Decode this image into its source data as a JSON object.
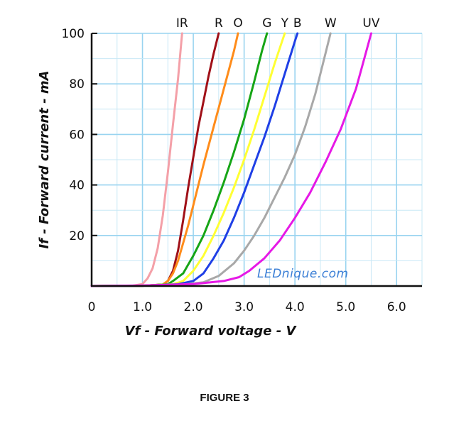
{
  "caption": "FIGURE 3",
  "chart_data": {
    "type": "line",
    "title": "",
    "xlabel": "Vf - Forward voltage - V",
    "ylabel": "If - Forward current - mA",
    "xlim": [
      0,
      6.5
    ],
    "ylim": [
      0,
      100
    ],
    "x_ticks": [
      "0",
      "1.0",
      "2.0",
      "3.0",
      "4.0",
      "5.0",
      "6.0"
    ],
    "y_ticks": [
      "20",
      "40",
      "60",
      "80",
      "100"
    ],
    "grid": true,
    "legend": "series names printed above top edge",
    "watermark": "LEDnique.com",
    "series": [
      {
        "name": "IR",
        "color": "#f4a0a8",
        "points": [
          [
            0,
            0
          ],
          [
            0.8,
            0.1
          ],
          [
            1.0,
            0.8
          ],
          [
            1.1,
            3
          ],
          [
            1.2,
            7
          ],
          [
            1.3,
            15
          ],
          [
            1.4,
            28
          ],
          [
            1.5,
            45
          ],
          [
            1.6,
            64
          ],
          [
            1.7,
            82
          ],
          [
            1.78,
            100
          ]
        ]
      },
      {
        "name": "R",
        "color": "#a01018",
        "points": [
          [
            0,
            0
          ],
          [
            1.0,
            0.1
          ],
          [
            1.4,
            0.6
          ],
          [
            1.5,
            2
          ],
          [
            1.6,
            6
          ],
          [
            1.7,
            14
          ],
          [
            1.8,
            26
          ],
          [
            1.9,
            39
          ],
          [
            2.0,
            51
          ],
          [
            2.1,
            63
          ],
          [
            2.2,
            73
          ],
          [
            2.3,
            83
          ],
          [
            2.4,
            92
          ],
          [
            2.5,
            100
          ]
        ]
      },
      {
        "name": "O",
        "color": "#ff8c1a",
        "points": [
          [
            0,
            0
          ],
          [
            1.0,
            0.1
          ],
          [
            1.4,
            0.6
          ],
          [
            1.5,
            2
          ],
          [
            1.6,
            5
          ],
          [
            1.7,
            10
          ],
          [
            1.8,
            17
          ],
          [
            1.9,
            24
          ],
          [
            2.0,
            32
          ],
          [
            2.2,
            48
          ],
          [
            2.4,
            63
          ],
          [
            2.6,
            78
          ],
          [
            2.8,
            93
          ],
          [
            2.88,
            100
          ]
        ]
      },
      {
        "name": "G",
        "color": "#16a516",
        "points": [
          [
            0,
            0
          ],
          [
            1.0,
            0.1
          ],
          [
            1.5,
            0.7
          ],
          [
            1.6,
            2
          ],
          [
            1.8,
            5
          ],
          [
            2.0,
            12
          ],
          [
            2.2,
            20
          ],
          [
            2.4,
            30
          ],
          [
            2.6,
            41
          ],
          [
            2.8,
            53
          ],
          [
            3.0,
            66
          ],
          [
            3.2,
            81
          ],
          [
            3.35,
            93
          ],
          [
            3.45,
            100
          ]
        ]
      },
      {
        "name": "Y",
        "color": "#ffff33",
        "points": [
          [
            0,
            0
          ],
          [
            1.0,
            0.1
          ],
          [
            1.6,
            0.7
          ],
          [
            1.8,
            2
          ],
          [
            2.0,
            6
          ],
          [
            2.2,
            12
          ],
          [
            2.4,
            20
          ],
          [
            2.6,
            29
          ],
          [
            2.8,
            39
          ],
          [
            3.0,
            50
          ],
          [
            3.2,
            62
          ],
          [
            3.4,
            75
          ],
          [
            3.6,
            88
          ],
          [
            3.8,
            100
          ]
        ]
      },
      {
        "name": "B",
        "color": "#1f3fe6",
        "points": [
          [
            0,
            0
          ],
          [
            1.0,
            0.1
          ],
          [
            1.7,
            0.7
          ],
          [
            2.0,
            2
          ],
          [
            2.2,
            5
          ],
          [
            2.4,
            11
          ],
          [
            2.6,
            18
          ],
          [
            2.8,
            27
          ],
          [
            3.0,
            37
          ],
          [
            3.2,
            48
          ],
          [
            3.4,
            59
          ],
          [
            3.6,
            71
          ],
          [
            3.8,
            84
          ],
          [
            4.0,
            97
          ],
          [
            4.05,
            100
          ]
        ]
      },
      {
        "name": "W",
        "color": "#a8a8a8",
        "points": [
          [
            0,
            0
          ],
          [
            1.0,
            0.1
          ],
          [
            1.8,
            0.6
          ],
          [
            2.2,
            1.5
          ],
          [
            2.5,
            4
          ],
          [
            2.8,
            9
          ],
          [
            3.0,
            14
          ],
          [
            3.2,
            20
          ],
          [
            3.4,
            27
          ],
          [
            3.6,
            35
          ],
          [
            3.8,
            43
          ],
          [
            4.0,
            52
          ],
          [
            4.2,
            63
          ],
          [
            4.4,
            76
          ],
          [
            4.6,
            92
          ],
          [
            4.7,
            100
          ]
        ]
      },
      {
        "name": "UV",
        "color": "#e619e6",
        "points": [
          [
            0,
            0
          ],
          [
            1.0,
            0.2
          ],
          [
            2.0,
            0.8
          ],
          [
            2.6,
            2
          ],
          [
            2.9,
            3.5
          ],
          [
            3.1,
            6
          ],
          [
            3.4,
            11
          ],
          [
            3.7,
            18
          ],
          [
            4.0,
            27
          ],
          [
            4.3,
            37
          ],
          [
            4.6,
            49
          ],
          [
            4.9,
            62
          ],
          [
            5.2,
            78
          ],
          [
            5.5,
            100
          ]
        ]
      }
    ]
  }
}
